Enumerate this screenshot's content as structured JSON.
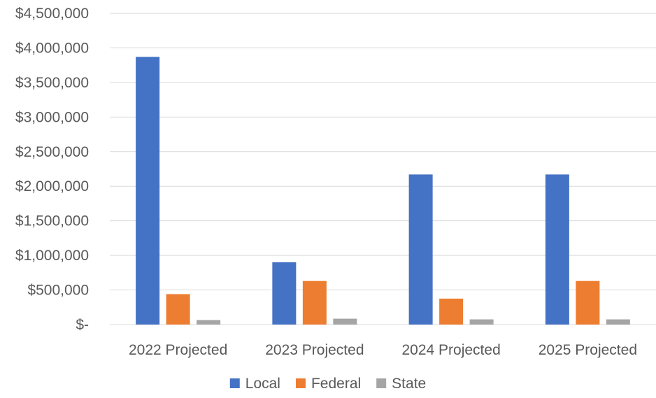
{
  "chart_data": {
    "type": "bar",
    "categories": [
      "2022 Projected",
      "2023 Projected",
      "2024 Projected",
      "2025 Projected"
    ],
    "series": [
      {
        "name": "Local",
        "color": "#4472c4",
        "values": [
          3870000,
          900000,
          2170000,
          2170000
        ]
      },
      {
        "name": "Federal",
        "color": "#ed7d31",
        "values": [
          440000,
          630000,
          375000,
          630000
        ]
      },
      {
        "name": "State",
        "color": "#a5a5a5",
        "values": [
          65000,
          85000,
          75000,
          75000
        ]
      }
    ],
    "ylim": [
      0,
      4500000
    ],
    "yticks": [
      {
        "value": 0,
        "label": "$-"
      },
      {
        "value": 500000,
        "label": "$500,000"
      },
      {
        "value": 1000000,
        "label": "$1,000,000"
      },
      {
        "value": 1500000,
        "label": "$1,500,000"
      },
      {
        "value": 2000000,
        "label": "$2,000,000"
      },
      {
        "value": 2500000,
        "label": "$2,500,000"
      },
      {
        "value": 3000000,
        "label": "$3,000,000"
      },
      {
        "value": 3500000,
        "label": "$3,500,000"
      },
      {
        "value": 4000000,
        "label": "$4,000,000"
      },
      {
        "value": 4500000,
        "label": "$4,500,000"
      }
    ],
    "grid": true,
    "legend_position": "bottom"
  }
}
